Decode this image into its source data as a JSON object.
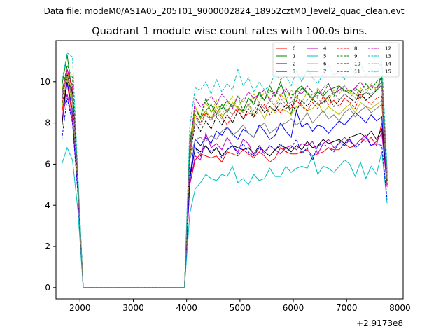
{
  "figure": {
    "suptitle": "Data file: modeM0/AS1A05_205T01_9000002824_18952cztM0_level2_quad_clean.evt"
  },
  "chart_data": {
    "type": "line",
    "title": "Quadrant 1 module wise count rates with 100.0s bins.",
    "xlabel": "",
    "ylabel": "",
    "x_offset_label": "+2.9173e8",
    "xlim": [
      1550,
      8060
    ],
    "ylim": [
      -0.55,
      12.0
    ],
    "xticks": [
      2000,
      3000,
      4000,
      5000,
      6000,
      7000,
      8000
    ],
    "yticks": [
      0,
      2,
      4,
      6,
      8,
      10
    ],
    "grid": false,
    "legend": {
      "placement": "upper-right",
      "ncol": 4
    },
    "x": [
      1660,
      1760,
      1860,
      1960,
      2060,
      2160,
      2260,
      2360,
      2460,
      2560,
      2660,
      2760,
      2860,
      2960,
      3060,
      3160,
      3260,
      3360,
      3460,
      3560,
      3660,
      3760,
      3860,
      3960,
      4060,
      4160,
      4260,
      4360,
      4460,
      4560,
      4660,
      4760,
      4860,
      4960,
      5060,
      5160,
      5260,
      5360,
      5460,
      5560,
      5660,
      5760,
      5860,
      5960,
      6060,
      6160,
      6260,
      6360,
      6460,
      6560,
      6660,
      6760,
      6860,
      6960,
      7060,
      7160,
      7260,
      7360,
      7460,
      7560,
      7660,
      7760
    ],
    "series": [
      {
        "name": "0",
        "color": "#ff0000",
        "dash": "solid",
        "values": [
          8.5,
          9.9,
          8.3,
          4.8,
          0,
          0,
          0,
          0,
          0,
          0,
          0,
          0,
          0,
          0,
          0,
          0,
          0,
          0,
          0,
          0,
          0,
          0,
          0,
          0,
          5.0,
          6.2,
          6.5,
          6.4,
          6.3,
          6.4,
          6.1,
          6.6,
          6.5,
          6.4,
          6.7,
          6.5,
          6.3,
          6.6,
          6.4,
          6.1,
          6.3,
          6.8,
          6.6,
          6.5,
          6.5,
          6.6,
          6.7,
          6.4,
          6.5,
          6.6,
          6.8,
          6.7,
          6.7,
          7.0,
          6.8,
          6.9,
          7.2,
          7.1,
          7.3,
          6.9,
          8.0,
          5.0
        ]
      },
      {
        "name": "1",
        "color": "#008000",
        "dash": "solid",
        "values": [
          9.8,
          11.3,
          9.3,
          5.3,
          0,
          0,
          0,
          0,
          0,
          0,
          0,
          0,
          0,
          0,
          0,
          0,
          0,
          0,
          0,
          0,
          0,
          0,
          0,
          0,
          6.9,
          8.8,
          8.2,
          8.6,
          8.9,
          8.4,
          8.9,
          8.5,
          9.0,
          8.7,
          8.6,
          9.2,
          8.9,
          9.5,
          9.1,
          9.8,
          9.3,
          10.0,
          9.2,
          8.4,
          9.6,
          9.8,
          9.4,
          9.2,
          9.5,
          9.3,
          9.6,
          9.7,
          9.8,
          9.5,
          9.6,
          9.4,
          9.2,
          9.5,
          9.3,
          9.6,
          10.3,
          5.3
        ]
      },
      {
        "name": "2",
        "color": "#0000ff",
        "dash": "solid",
        "values": [
          8.0,
          10.0,
          8.6,
          4.8,
          0,
          0,
          0,
          0,
          0,
          0,
          0,
          0,
          0,
          0,
          0,
          0,
          0,
          0,
          0,
          0,
          0,
          0,
          0,
          0,
          5.4,
          7.2,
          6.9,
          7.3,
          7.0,
          7.6,
          7.4,
          7.8,
          7.5,
          7.2,
          7.7,
          7.5,
          7.3,
          7.9,
          7.6,
          7.2,
          7.4,
          8.0,
          7.6,
          7.3,
          8.6,
          7.8,
          8.0,
          7.6,
          7.9,
          7.8,
          7.5,
          7.8,
          8.1,
          7.9,
          8.2,
          8.5,
          8.3,
          8.0,
          8.4,
          8.1,
          8.3,
          5.0
        ]
      },
      {
        "name": "3",
        "color": "#000000",
        "dash": "solid",
        "values": [
          7.8,
          10.4,
          9.2,
          5.1,
          0,
          0,
          0,
          0,
          0,
          0,
          0,
          0,
          0,
          0,
          0,
          0,
          0,
          0,
          0,
          0,
          0,
          0,
          0,
          0,
          5.3,
          6.8,
          6.6,
          6.9,
          6.5,
          6.8,
          6.4,
          6.7,
          6.9,
          6.8,
          6.7,
          6.8,
          6.5,
          6.9,
          6.6,
          6.4,
          6.7,
          6.9,
          6.8,
          6.6,
          6.9,
          6.7,
          7.1,
          6.8,
          6.9,
          7.2,
          7.0,
          7.1,
          7.2,
          7.0,
          7.3,
          7.4,
          7.5,
          7.3,
          7.6,
          7.2,
          7.7,
          5.0
        ]
      },
      {
        "name": "4",
        "color": "#bf00bf",
        "dash": "solid",
        "values": [
          8.2,
          9.4,
          8.1,
          4.7,
          0,
          0,
          0,
          0,
          0,
          0,
          0,
          0,
          0,
          0,
          0,
          0,
          0,
          0,
          0,
          0,
          0,
          0,
          0,
          0,
          5.0,
          6.4,
          6.2,
          7.5,
          6.8,
          7.0,
          6.7,
          7.3,
          6.9,
          6.6,
          7.2,
          7.0,
          6.4,
          6.8,
          6.6,
          6.9,
          6.7,
          6.5,
          6.8,
          6.9,
          6.7,
          7.0,
          6.9,
          7.1,
          6.5,
          7.0,
          7.2,
          6.8,
          7.0,
          7.3,
          7.1,
          6.9,
          7.2,
          7.4,
          6.9,
          7.1,
          7.5,
          4.9
        ]
      },
      {
        "name": "5",
        "color": "#00bfbf",
        "dash": "solid",
        "values": [
          6.0,
          6.8,
          6.2,
          3.8,
          0,
          0,
          0,
          0,
          0,
          0,
          0,
          0,
          0,
          0,
          0,
          0,
          0,
          0,
          0,
          0,
          0,
          0,
          0,
          0,
          3.6,
          4.8,
          5.1,
          5.5,
          5.3,
          5.2,
          5.5,
          5.4,
          5.9,
          5.1,
          5.3,
          5.0,
          5.5,
          5.2,
          5.3,
          5.8,
          5.4,
          5.4,
          5.9,
          5.6,
          5.8,
          5.9,
          5.8,
          6.4,
          5.5,
          5.9,
          5.8,
          5.6,
          5.9,
          6.2,
          6.0,
          5.4,
          6.1,
          5.3,
          5.9,
          5.5,
          6.6,
          4.1
        ]
      },
      {
        "name": "6",
        "color": "#bfbf00",
        "dash": "solid",
        "values": [
          9.6,
          10.6,
          9.2,
          5.2,
          0,
          0,
          0,
          0,
          0,
          0,
          0,
          0,
          0,
          0,
          0,
          0,
          0,
          0,
          0,
          0,
          0,
          0,
          0,
          0,
          6.4,
          8.8,
          8.3,
          8.6,
          8.2,
          8.8,
          8.3,
          8.6,
          9.0,
          8.7,
          8.5,
          8.9,
          8.4,
          8.7,
          8.2,
          8.8,
          8.5,
          8.7,
          8.6,
          8.4,
          8.8,
          8.9,
          8.6,
          8.7,
          9.0,
          8.5,
          8.8,
          8.6,
          8.4,
          8.7,
          8.9,
          8.5,
          9.0,
          8.8,
          8.7,
          8.9,
          9.1,
          5.1
        ]
      },
      {
        "name": "7",
        "color": "#808080",
        "dash": "solid",
        "values": [
          9.2,
          10.3,
          9.0,
          5.0,
          0,
          0,
          0,
          0,
          0,
          0,
          0,
          0,
          0,
          0,
          0,
          0,
          0,
          0,
          0,
          0,
          0,
          0,
          0,
          0,
          6.2,
          7.2,
          7.3,
          7.1,
          7.4,
          7.2,
          7.6,
          7.8,
          7.4,
          7.6,
          7.9,
          7.5,
          7.3,
          7.8,
          8.0,
          7.5,
          7.7,
          7.9,
          8.0,
          8.2,
          7.9,
          8.1,
          8.5,
          8.0,
          8.3,
          8.6,
          8.2,
          8.4,
          8.1,
          8.5,
          8.7,
          8.3,
          8.6,
          8.8,
          8.5,
          8.7,
          8.9,
          5.4
        ]
      },
      {
        "name": "8",
        "color": "#ff0000",
        "dash": "dashed",
        "values": [
          9.0,
          10.6,
          9.6,
          5.2,
          0,
          0,
          0,
          0,
          0,
          0,
          0,
          0,
          0,
          0,
          0,
          0,
          0,
          0,
          0,
          0,
          0,
          0,
          0,
          0,
          6.5,
          8.4,
          8.0,
          8.5,
          8.2,
          8.6,
          8.3,
          7.9,
          8.4,
          8.7,
          8.2,
          8.5,
          8.3,
          8.6,
          8.9,
          8.4,
          8.8,
          8.5,
          8.9,
          8.7,
          9.1,
          8.8,
          8.6,
          9.0,
          8.7,
          9.3,
          8.9,
          9.1,
          8.8,
          9.2,
          9.0,
          8.7,
          9.4,
          9.1,
          8.9,
          9.2,
          9.3,
          5.4
        ]
      },
      {
        "name": "9",
        "color": "#008000",
        "dash": "dashed",
        "values": [
          9.4,
          10.8,
          10.2,
          5.4,
          0,
          0,
          0,
          0,
          0,
          0,
          0,
          0,
          0,
          0,
          0,
          0,
          0,
          0,
          0,
          0,
          0,
          0,
          0,
          0,
          7.2,
          8.6,
          8.3,
          9.2,
          8.5,
          8.9,
          8.7,
          9.1,
          8.8,
          9.3,
          8.6,
          9.2,
          9.0,
          9.4,
          9.1,
          9.6,
          9.3,
          9.8,
          9.5,
          9.4,
          9.2,
          9.7,
          9.5,
          9.1,
          9.6,
          9.4,
          9.9,
          9.3,
          9.8,
          9.6,
          9.4,
          9.7,
          9.5,
          9.9,
          9.6,
          10.0,
          10.2,
          5.6
        ]
      },
      {
        "name": "10",
        "color": "#0000ff",
        "dash": "dashed",
        "values": [
          7.2,
          9.2,
          8.0,
          4.6,
          0,
          0,
          0,
          0,
          0,
          0,
          0,
          0,
          0,
          0,
          0,
          0,
          0,
          0,
          0,
          0,
          0,
          0,
          0,
          0,
          5.2,
          6.8,
          6.4,
          6.9,
          6.6,
          6.8,
          6.3,
          6.7,
          6.9,
          6.5,
          7.0,
          6.6,
          6.4,
          6.8,
          6.5,
          6.9,
          6.7,
          7.0,
          6.6,
          6.8,
          7.2,
          6.5,
          6.8,
          6.2,
          6.9,
          7.0,
          6.8,
          6.6,
          7.1,
          6.9,
          7.2,
          6.8,
          7.0,
          7.3,
          6.9,
          7.0,
          6.9,
          4.3
        ]
      },
      {
        "name": "11",
        "color": "#000000",
        "dash": "dashed",
        "values": [
          8.8,
          10.1,
          9.5,
          5.0,
          0,
          0,
          0,
          0,
          0,
          0,
          0,
          0,
          0,
          0,
          0,
          0,
          0,
          0,
          0,
          0,
          0,
          0,
          0,
          0,
          6.3,
          8.0,
          7.6,
          8.1,
          7.7,
          8.3,
          7.9,
          8.4,
          8.0,
          8.6,
          8.2,
          8.7,
          8.3,
          8.9,
          8.5,
          8.8,
          8.6,
          9.0,
          8.7,
          8.9,
          8.6,
          9.1,
          8.8,
          9.2,
          8.9,
          9.0,
          9.3,
          8.8,
          9.1,
          9.4,
          9.2,
          9.0,
          9.5,
          9.1,
          9.3,
          9.6,
          9.8,
          5.2
        ]
      },
      {
        "name": "12",
        "color": "#bf00bf",
        "dash": "dashed",
        "values": [
          9.3,
          10.6,
          9.8,
          5.1,
          0,
          0,
          0,
          0,
          0,
          0,
          0,
          0,
          0,
          0,
          0,
          0,
          0,
          0,
          0,
          0,
          0,
          0,
          0,
          0,
          6.6,
          9.2,
          8.8,
          9.0,
          9.3,
          8.9,
          9.4,
          9.1,
          8.7,
          9.3,
          9.0,
          9.5,
          9.2,
          9.4,
          9.6,
          9.1,
          9.5,
          9.3,
          9.7,
          9.2,
          9.6,
          9.4,
          9.8,
          9.5,
          9.3,
          9.7,
          9.9,
          9.4,
          9.6,
          9.8,
          9.5,
          9.7,
          10.0,
          9.6,
          9.8,
          9.7,
          10.0,
          5.5
        ]
      },
      {
        "name": "13",
        "color": "#00bfbf",
        "dash": "dashed",
        "values": [
          10.0,
          11.4,
          11.2,
          5.6,
          0,
          0,
          0,
          0,
          0,
          0,
          0,
          0,
          0,
          0,
          0,
          0,
          0,
          0,
          0,
          0,
          0,
          0,
          0,
          0,
          7.8,
          9.7,
          9.6,
          10.0,
          9.4,
          10.1,
          9.5,
          9.9,
          9.6,
          10.6,
          9.8,
          10.2,
          9.5,
          10.0,
          9.6,
          9.8,
          10.4,
          10.1,
          10.3,
          9.8,
          10.5,
          10.0,
          10.6,
          10.2,
          9.9,
          10.4,
          10.8,
          10.3,
          10.5,
          10.1,
          10.7,
          10.4,
          10.9,
          10.3,
          10.6,
          10.4,
          11.0,
          5.8
        ]
      },
      {
        "name": "14",
        "color": "#bfbf00",
        "dash": "dashed",
        "values": [
          8.7,
          10.2,
          8.8,
          5.0,
          0,
          0,
          0,
          0,
          0,
          0,
          0,
          0,
          0,
          0,
          0,
          0,
          0,
          0,
          0,
          0,
          0,
          0,
          0,
          0,
          6.2,
          8.6,
          8.2,
          9.0,
          8.5,
          9.1,
          8.4,
          8.9,
          9.3,
          8.7,
          9.2,
          8.8,
          9.4,
          9.0,
          9.5,
          9.2,
          8.9,
          9.4,
          9.1,
          9.6,
          9.3,
          9.0,
          9.5,
          9.2,
          9.7,
          9.3,
          9.1,
          9.6,
          9.4,
          9.8,
          9.5,
          9.2,
          9.7,
          9.4,
          9.9,
          9.6,
          9.9,
          5.3
        ]
      },
      {
        "name": "15",
        "color": "#808080",
        "dash": "dashed",
        "values": [
          9.1,
          10.4,
          9.3,
          5.1,
          0,
          0,
          0,
          0,
          0,
          0,
          0,
          0,
          0,
          0,
          0,
          0,
          0,
          0,
          0,
          0,
          0,
          0,
          0,
          0,
          6.4,
          8.3,
          7.9,
          8.4,
          8.1,
          8.5,
          8.2,
          8.7,
          8.4,
          8.8,
          8.5,
          8.9,
          8.6,
          9.0,
          8.7,
          9.1,
          8.8,
          9.2,
          8.9,
          9.0,
          9.3,
          8.9,
          9.1,
          9.4,
          9.2,
          8.9,
          9.3,
          9.5,
          9.1,
          9.4,
          9.2,
          9.6,
          9.3,
          9.5,
          9.4,
          9.7,
          9.8,
          5.3
        ]
      }
    ]
  }
}
